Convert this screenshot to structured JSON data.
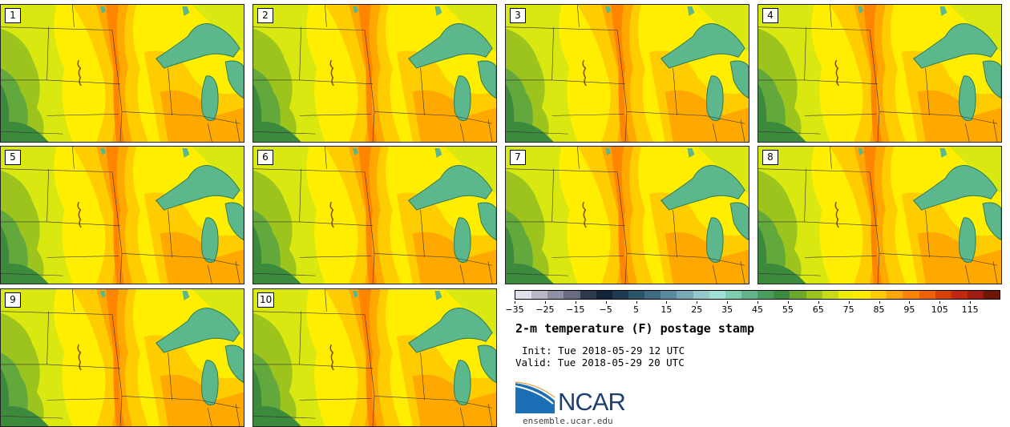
{
  "panels": [
    {
      "label": "1"
    },
    {
      "label": "2"
    },
    {
      "label": "3"
    },
    {
      "label": "4"
    },
    {
      "label": "5"
    },
    {
      "label": "6"
    },
    {
      "label": "7"
    },
    {
      "label": "8"
    },
    {
      "label": "9"
    },
    {
      "label": "10"
    }
  ],
  "colorbar": {
    "colors": [
      "#e0e0ea",
      "#b8b8c8",
      "#9090a4",
      "#6a6a80",
      "#2e3a4e",
      "#142438",
      "#1e3a52",
      "#2c5468",
      "#3e6c80",
      "#5a8aa0",
      "#78a8b4",
      "#94c8c8",
      "#9ee0d6",
      "#7ed0b0",
      "#62b48c",
      "#4a9c5c",
      "#3c8a3c",
      "#6ca82c",
      "#9cc41c",
      "#c8dc14",
      "#eeee0a",
      "#ffea00",
      "#ffca00",
      "#ffa800",
      "#ff8400",
      "#f06000",
      "#d84000",
      "#c02810",
      "#a01c10",
      "#701408"
    ],
    "tick_labels": [
      "−35",
      "−25",
      "−15",
      "−5",
      "5",
      "15",
      "25",
      "35",
      "45",
      "55",
      "65",
      "75",
      "85",
      "95",
      "105",
      "115"
    ],
    "range": [
      -35,
      125
    ],
    "step": 5
  },
  "title": "2-m temperature (F) postage stamp",
  "init": "Init: Tue 2018-05-29 12 UTC",
  "valid": "Valid: Tue 2018-05-29 20 UTC",
  "logo": {
    "text": "NCAR",
    "color": "#1f3f73",
    "swoosh_color": "#1a6fb5"
  },
  "website": "ensemble.ucar.edu",
  "map_colors": {
    "green_dark": "#3c8a3c",
    "green_mid": "#62a83c",
    "green_light": "#9cc41c",
    "yellow_green": "#d8e810",
    "yellow": "#ffee00",
    "gold": "#ffcc00",
    "orange": "#ffa800",
    "orange_dark": "#ff8400",
    "lake": "#5cb88c",
    "lake_edge": "#2e7a52",
    "border": "#333333"
  }
}
